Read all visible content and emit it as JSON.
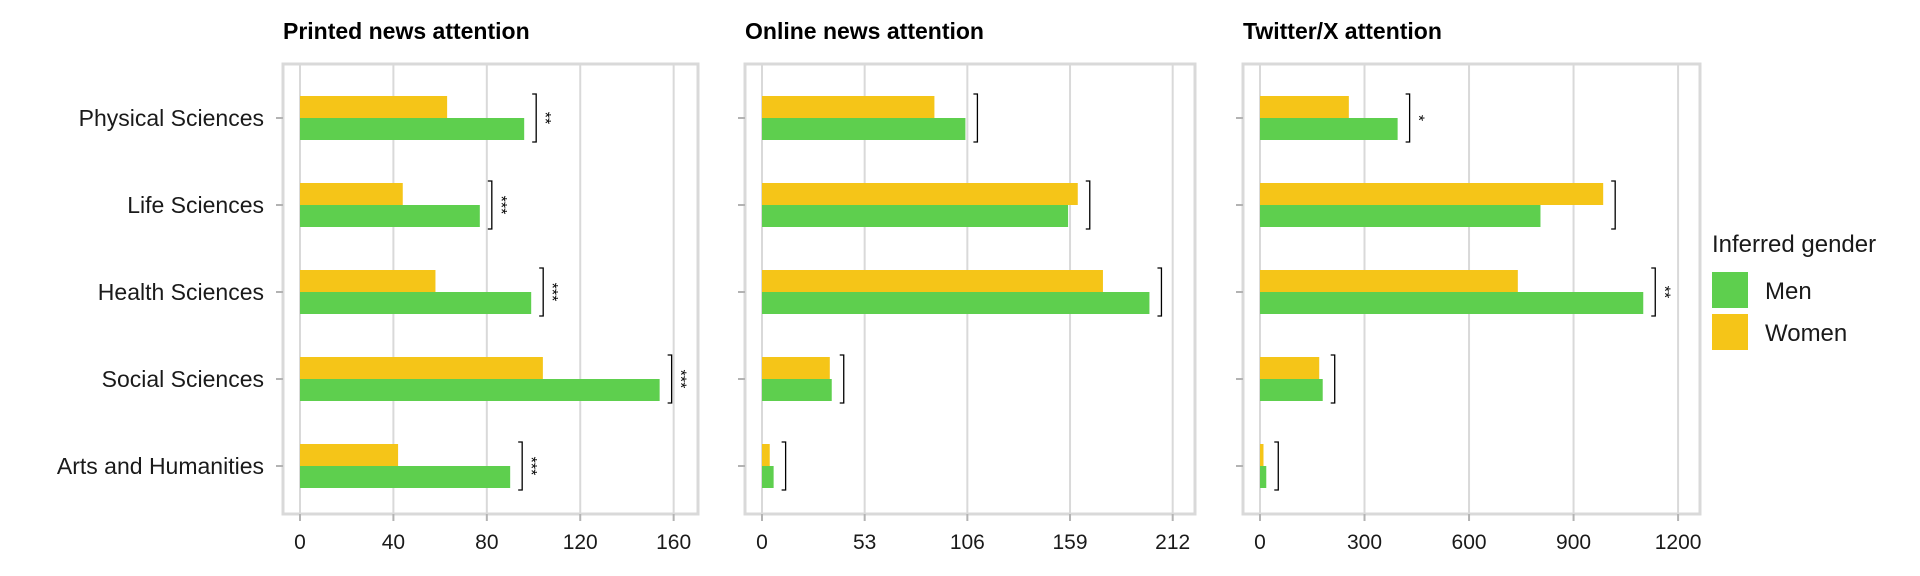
{
  "chart_data": [
    {
      "type": "bar",
      "orientation": "horizontal",
      "title": "Printed news attention",
      "categories": [
        "Physical Sciences",
        "Life Sciences",
        "Health Sciences",
        "Social Sciences",
        "Arts and Humanities"
      ],
      "series": [
        {
          "name": "Men",
          "values": [
            96,
            77,
            99,
            154,
            90
          ]
        },
        {
          "name": "Women",
          "values": [
            63,
            44,
            58,
            104,
            42
          ]
        }
      ],
      "significance": [
        "**",
        "***",
        "***",
        "***",
        "***"
      ],
      "xlim": [
        0,
        170
      ],
      "xticks": [
        0,
        40,
        80,
        120,
        160
      ],
      "grid": true
    },
    {
      "type": "bar",
      "orientation": "horizontal",
      "title": "Online news attention",
      "categories": [
        "Physical Sciences",
        "Life Sciences",
        "Health Sciences",
        "Social Sciences",
        "Arts and Humanities"
      ],
      "series": [
        {
          "name": "Men",
          "values": [
            105,
            158,
            200,
            36,
            6
          ]
        },
        {
          "name": "Women",
          "values": [
            89,
            163,
            176,
            35,
            4
          ]
        }
      ],
      "significance": [
        "",
        "",
        "",
        "",
        ""
      ],
      "xlim": [
        0,
        223
      ],
      "xticks": [
        0,
        53,
        106,
        159,
        212
      ],
      "grid": true
    },
    {
      "type": "bar",
      "orientation": "horizontal",
      "title": "Twitter/X attention",
      "categories": [
        "Physical Sciences",
        "Life Sciences",
        "Health Sciences",
        "Social Sciences",
        "Arts and Humanities"
      ],
      "series": [
        {
          "name": "Men",
          "values": [
            395,
            805,
            1100,
            180,
            18
          ]
        },
        {
          "name": "Women",
          "values": [
            255,
            985,
            740,
            170,
            10
          ]
        }
      ],
      "significance": [
        "*",
        "",
        "**",
        "",
        ""
      ],
      "xlim": [
        0,
        1260
      ],
      "xticks": [
        0,
        300,
        600,
        900,
        1200
      ],
      "grid": true
    }
  ],
  "legend": {
    "title": "Inferred gender",
    "placement": "right",
    "items": [
      {
        "label": "Men",
        "color": "#5ecf4e"
      },
      {
        "label": "Women",
        "color": "#f5c518"
      }
    ]
  },
  "colors": {
    "men": "#5ecf4e",
    "women": "#f5c518",
    "grid": "#d9d9d9",
    "frame": "#d9d9d9"
  }
}
